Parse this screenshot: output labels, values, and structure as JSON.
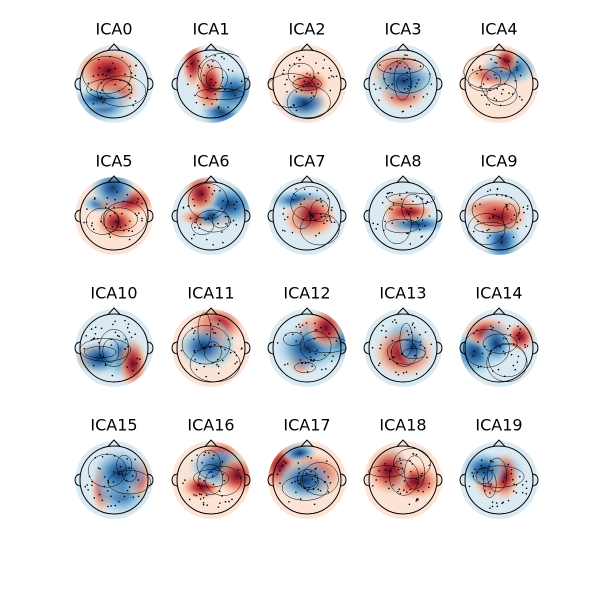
{
  "panels": [
    {
      "title": "ICA0"
    },
    {
      "title": "ICA1"
    },
    {
      "title": "ICA2"
    },
    {
      "title": "ICA3"
    },
    {
      "title": "ICA4"
    },
    {
      "title": "ICA5"
    },
    {
      "title": "ICA6"
    },
    {
      "title": "ICA7"
    },
    {
      "title": "ICA8"
    },
    {
      "title": "ICA9"
    },
    {
      "title": "ICA10"
    },
    {
      "title": "ICA11"
    },
    {
      "title": "ICA12"
    },
    {
      "title": "ICA13"
    },
    {
      "title": "ICA14"
    },
    {
      "title": "ICA15"
    },
    {
      "title": "ICA16"
    },
    {
      "title": "ICA17"
    },
    {
      "title": "ICA18"
    },
    {
      "title": "ICA19"
    }
  ]
}
